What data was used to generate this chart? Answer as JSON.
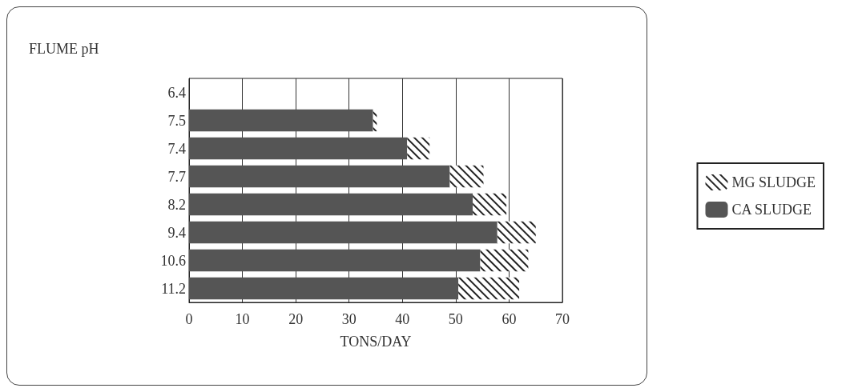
{
  "chart_data": {
    "type": "bar",
    "orientation": "horizontal",
    "stacked": true,
    "ylabel": "FLUME pH",
    "xlabel": "TONS/DAY",
    "categories": [
      "6.4",
      "7.5",
      "7.4",
      "7.7",
      "8.2",
      "9.4",
      "10.6",
      "11.2"
    ],
    "series": [
      {
        "name": "CA SLUDGE",
        "color": "#555555",
        "values": [
          null,
          34.5,
          40.9,
          48.9,
          53.2,
          57.8,
          54.6,
          50.5
        ]
      },
      {
        "name": "MG SLUDGE",
        "color": "#222222",
        "values": [
          null,
          0.7,
          4.2,
          6.3,
          6.3,
          7.2,
          9.0,
          11.4
        ]
      }
    ],
    "xlim": [
      0,
      70
    ],
    "xticks": [
      0,
      10,
      20,
      30,
      40,
      50,
      60,
      70
    ],
    "grid": "x",
    "legend": "right"
  }
}
